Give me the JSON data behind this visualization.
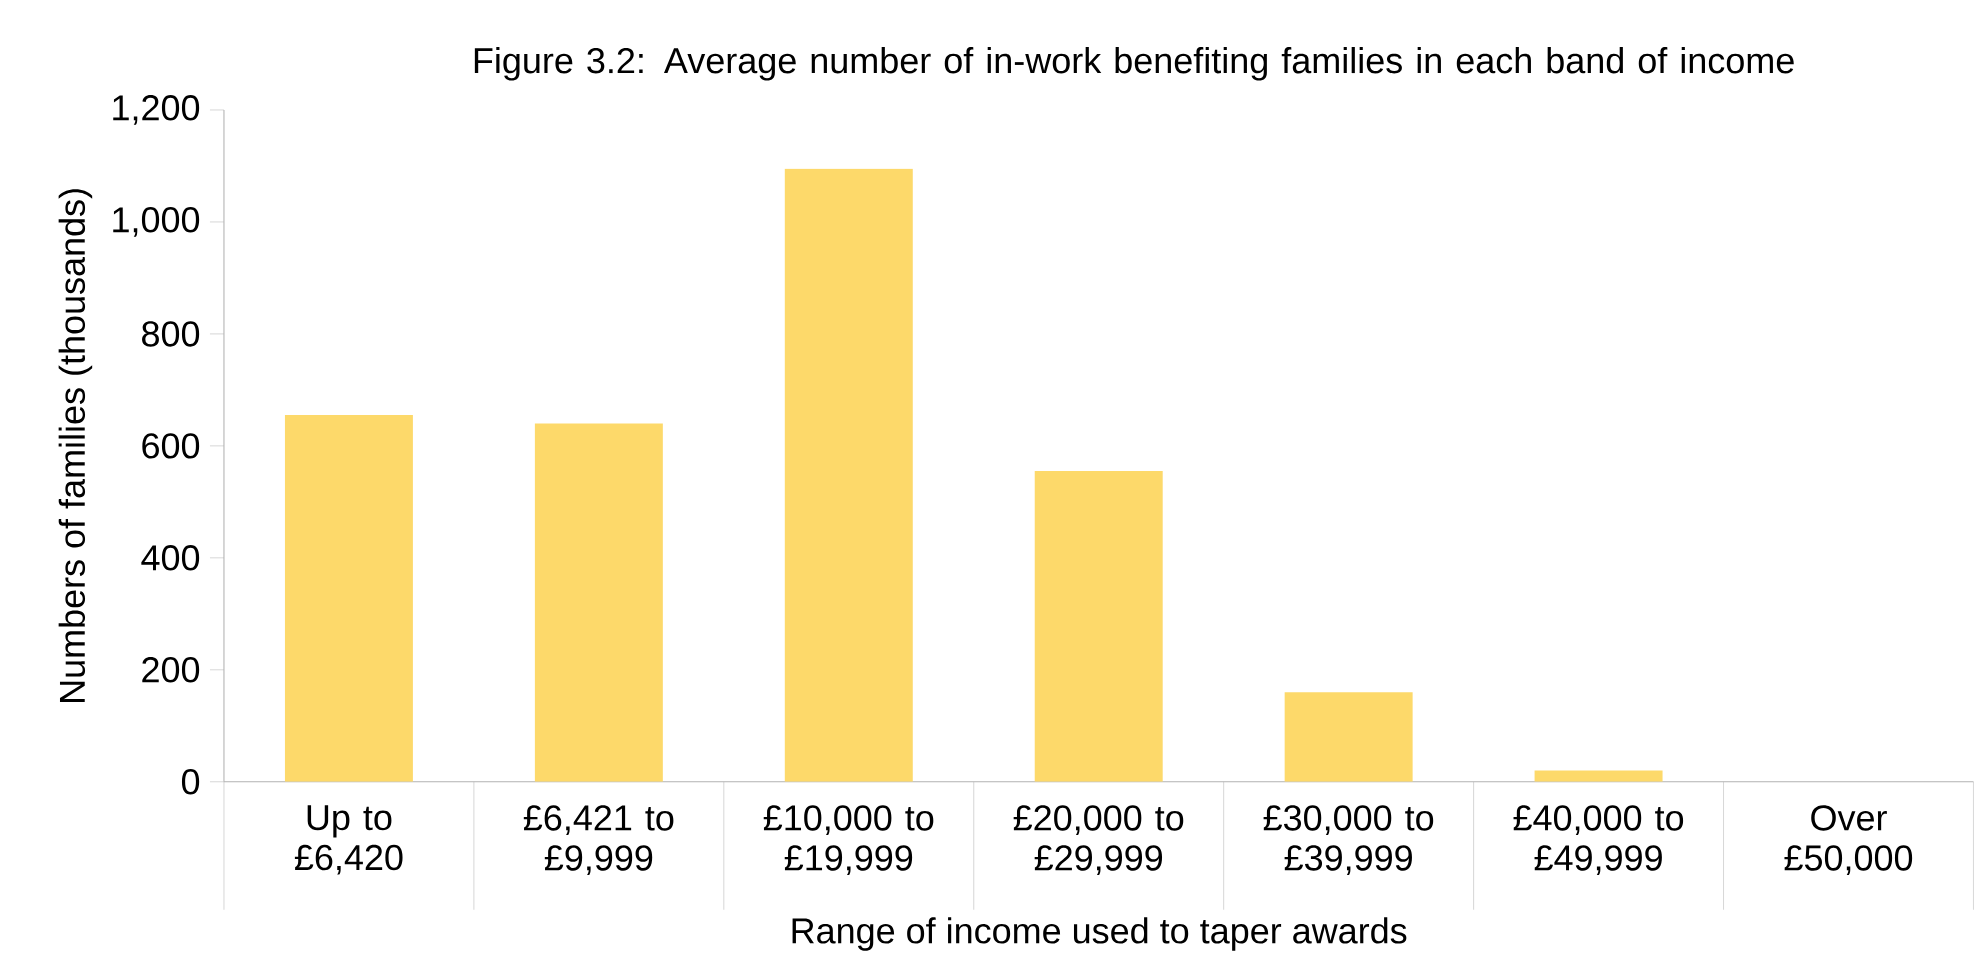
{
  "chart_data": {
    "type": "bar",
    "title": "Figure 3.2:  Average number of in-work benefiting families in each band of income",
    "xlabel": "Range of income used to taper awards",
    "ylabel": "Numbers of families (thousands)",
    "categories": [
      "Up to £6,420",
      "£6,421 to £9,999",
      "£10,000 to £19,999",
      "£20,000 to £29,999",
      "£30,000 to £39,999",
      "£40,000 to £49,999",
      "Over £50,000"
    ],
    "values": [
      655,
      640,
      1095,
      555,
      160,
      20,
      0
    ],
    "color": "#fdd96a",
    "ylim": [
      0,
      1200
    ],
    "yticks": [
      {
        "value": 0,
        "label": "0"
      },
      {
        "value": 200,
        "label": "200"
      },
      {
        "value": 400,
        "label": "400"
      },
      {
        "value": 600,
        "label": "600"
      },
      {
        "value": 800,
        "label": "800"
      },
      {
        "value": 1000,
        "label": "1,000"
      },
      {
        "value": 1200,
        "label": "1,200"
      }
    ],
    "grid": false
  }
}
